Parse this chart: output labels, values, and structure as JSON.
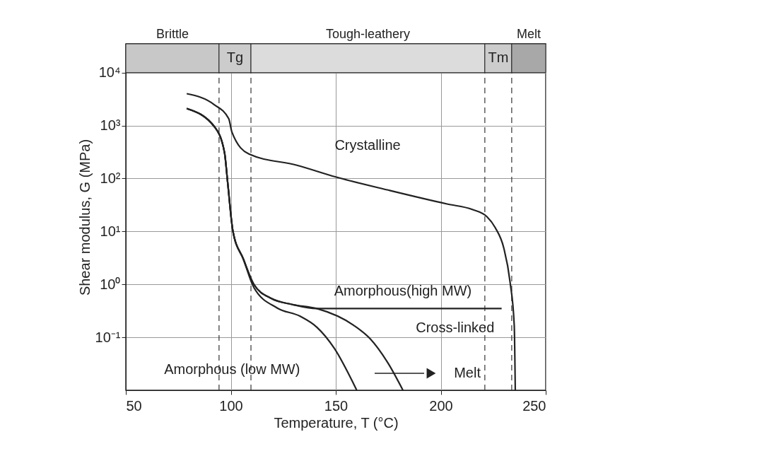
{
  "chart_data": {
    "type": "line",
    "xlabel": "Temperature, T (°C)",
    "ylabel": "Shear modulus, G (MPa)",
    "xlim": [
      50,
      250
    ],
    "xticks": [
      50,
      100,
      150,
      200,
      250
    ],
    "ylim": [
      0.01,
      35000
    ],
    "yticks": [
      {
        "value": 0.1,
        "label": "10⁻¹"
      },
      {
        "value": 1,
        "label": "10⁰"
      },
      {
        "value": 10,
        "label": "10¹"
      },
      {
        "value": 100,
        "label": "10²"
      },
      {
        "value": 1000,
        "label": "10³"
      },
      {
        "value": 10000,
        "label": "10⁴"
      }
    ],
    "log": "y",
    "grid": true,
    "line_style": "solid",
    "marker": "none",
    "series": [
      {
        "color": "#222222",
        "x": [
          79,
          92,
          99,
          100.6,
          108.6,
          131.5,
          150,
          176,
          203,
          215,
          222,
          226,
          230,
          233,
          235,
          235.5
        ],
        "values": [
          4000,
          2500,
          1350,
          740,
          290,
          178,
          107,
          59,
          33,
          26,
          19,
          11.7,
          4.9,
          1.12,
          0.17,
          0.01
        ]
      },
      {
        "color": "#222222",
        "x": [
          79,
          92.4,
          97,
          98.5,
          101,
          106,
          111,
          119.4,
          129,
          141,
          229
        ],
        "values": [
          2100,
          930,
          310,
          85,
          10.2,
          3.0,
          1.0,
          0.54,
          0.42,
          0.35,
          0.35
        ]
      },
      {
        "color": "#222222",
        "x": [
          79,
          92.4,
          97,
          98.5,
          101,
          106,
          111,
          119.4,
          129,
          141,
          158.4,
          166.5,
          175,
          182
        ],
        "values": [
          2100,
          930,
          310,
          85,
          10.2,
          3.0,
          1.0,
          0.54,
          0.42,
          0.35,
          0.17,
          0.093,
          0.032,
          0.01
        ]
      },
      {
        "color": "#222222",
        "x": [
          79,
          92.4,
          97,
          98.5,
          101,
          106,
          111,
          122,
          133,
          141,
          149.3,
          160
        ],
        "values": [
          2100,
          930,
          310,
          85,
          10.2,
          3.0,
          0.87,
          0.36,
          0.25,
          0.155,
          0.062,
          0.01
        ]
      }
    ],
    "bands": [
      {
        "axis": "x",
        "from": 50,
        "to": 94.4,
        "label": "Brittle",
        "color": "#c8c8c8"
      },
      {
        "axis": "x",
        "from": 94.4,
        "to": 109.6,
        "label": "Tg"
      },
      {
        "axis": "x",
        "from": 109.6,
        "to": 221,
        "label": "Tough-leathery",
        "color": "#dcdcdc"
      },
      {
        "axis": "x",
        "from": 221,
        "to": 233.8,
        "label": "Tm"
      },
      {
        "axis": "x",
        "from": 233.8,
        "to": 250,
        "label": "Melt",
        "color": "#a8a8a8"
      }
    ],
    "ref_lines": [
      {
        "axis": "x",
        "value": 94.4,
        "line_style": "dashed"
      },
      {
        "axis": "x",
        "value": 109.6,
        "line_style": "dashed"
      },
      {
        "axis": "x",
        "value": 221,
        "line_style": "dashed"
      },
      {
        "axis": "x",
        "value": 233.8,
        "line_style": "dashed"
      }
    ],
    "annotations": [
      {
        "text": "Crystalline",
        "x": 131.5,
        "y": 178
      },
      {
        "text": "Amorphous(high MW)",
        "x": 158.4,
        "y": 0.17
      },
      {
        "text": "Cross-linked",
        "x": 190,
        "y": 0.35
      },
      {
        "text": "Amorphous (low MW)",
        "x": 141,
        "y": 0.155
      },
      "Melt"
    ]
  }
}
